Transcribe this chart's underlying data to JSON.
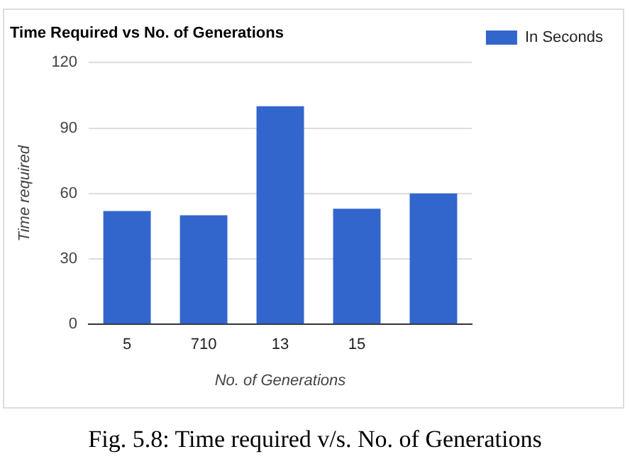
{
  "chart_data": {
    "type": "bar",
    "title": "Time Required vs No. of Generations",
    "xlabel": "No. of Generations",
    "ylabel": "Time required",
    "categories": [
      "5",
      "710",
      "13",
      "15",
      null
    ],
    "series": [
      {
        "name": "In Seconds",
        "color": "#3366cc",
        "values": [
          52,
          50,
          100,
          53,
          60
        ]
      }
    ],
    "ylim": [
      0,
      120
    ],
    "yticks": [
      0,
      30,
      60,
      90,
      120
    ],
    "grid": "y",
    "legend": "right",
    "annotations": [
      "Fig. 5.8: Time required v/s. No. of Generations"
    ]
  }
}
